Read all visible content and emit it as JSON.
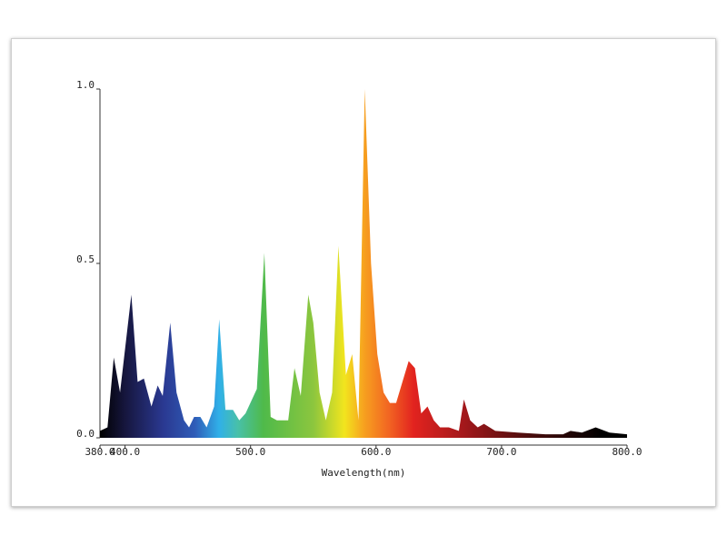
{
  "chart_data": {
    "type": "area",
    "x_label": "Wavelength(nm)",
    "x": [
      380,
      386,
      391,
      396,
      405,
      410,
      415,
      421,
      426,
      430,
      436,
      441,
      447,
      451,
      455,
      460,
      465,
      471,
      475,
      480,
      486,
      491,
      496,
      505,
      511,
      516,
      521,
      530,
      535,
      540,
      546,
      550,
      555,
      560,
      565,
      570,
      576,
      581,
      586,
      591,
      596,
      601,
      606,
      611,
      616,
      621,
      626,
      631,
      636,
      641,
      646,
      651,
      658,
      666,
      670,
      675,
      681,
      686,
      695,
      713,
      735,
      749,
      755,
      764,
      775,
      786,
      800
    ],
    "values": [
      0.02,
      0.03,
      0.23,
      0.13,
      0.41,
      0.16,
      0.17,
      0.09,
      0.15,
      0.12,
      0.33,
      0.13,
      0.05,
      0.03,
      0.06,
      0.06,
      0.03,
      0.09,
      0.34,
      0.08,
      0.08,
      0.05,
      0.07,
      0.14,
      0.53,
      0.06,
      0.05,
      0.05,
      0.2,
      0.12,
      0.41,
      0.33,
      0.13,
      0.05,
      0.13,
      0.55,
      0.18,
      0.24,
      0.05,
      1.0,
      0.5,
      0.24,
      0.13,
      0.1,
      0.1,
      0.16,
      0.22,
      0.2,
      0.07,
      0.09,
      0.05,
      0.03,
      0.03,
      0.02,
      0.11,
      0.05,
      0.03,
      0.04,
      0.02,
      0.015,
      0.01,
      0.01,
      0.02,
      0.015,
      0.03,
      0.015,
      0.01
    ],
    "xlim": [
      380,
      800
    ],
    "ylim": [
      0,
      1
    ],
    "xticks": [
      {
        "value": 380,
        "label": "380.0"
      },
      {
        "value": 400,
        "label": "400.0"
      },
      {
        "value": 500,
        "label": "500.0"
      },
      {
        "value": 600,
        "label": "600.0"
      },
      {
        "value": 700,
        "label": "700.0"
      },
      {
        "value": 800,
        "label": "800.0"
      }
    ],
    "yticks": [
      {
        "value": 0,
        "label": "0.0"
      },
      {
        "value": 0.5,
        "label": "0.5"
      },
      {
        "value": 1,
        "label": "1.0"
      }
    ]
  }
}
